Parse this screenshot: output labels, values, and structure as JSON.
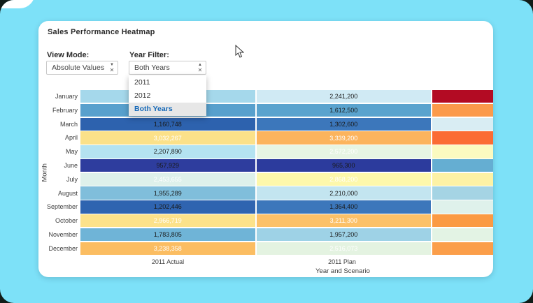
{
  "card": {
    "title": "Sales Performance Heatmap"
  },
  "controls": {
    "view_mode": {
      "label": "View Mode:",
      "value": "Absolute Values"
    },
    "year_filter": {
      "label": "Year Filter:",
      "value": "Both Years",
      "options": [
        "2011",
        "2012",
        "Both Years"
      ],
      "selected_option": "Both Years"
    }
  },
  "colors": {
    "background": "#7de1f8",
    "card": "#ffffff",
    "menu_selected_text": "#1669b8",
    "menu_selected_bg": "#e7e7e7"
  },
  "chart_data": {
    "type": "heatmap",
    "title": "Sales Performance Heatmap",
    "xlabel": "Year and Scenario",
    "ylabel": "Month",
    "x_categories": [
      "2011 Actual",
      "2011 Plan"
    ],
    "x_tick_positions": [
      185,
      434
    ],
    "y_categories": [
      "January",
      "February",
      "March",
      "April",
      "May",
      "June",
      "July",
      "August",
      "September",
      "October",
      "November",
      "December"
    ],
    "series": [
      {
        "name": "2011 Actual",
        "values": [
          null,
          null,
          1160748,
          3032267,
          2207890,
          957929,
          2453655,
          1955289,
          1202446,
          2966719,
          1783805,
          3238358
        ]
      },
      {
        "name": "2011 Plan",
        "values": [
          2241200,
          1612500,
          1302600,
          3339200,
          2572200,
          965300,
          2868200,
          2210000,
          1364400,
          3211300,
          1957200,
          2516073
        ]
      }
    ],
    "note_third_column": "partial unlabeled column clipped at card edge",
    "rows": [
      {
        "month": "January",
        "cells": [
          {
            "bg": "#a5d8eb",
            "label": "",
            "text": "#1a1a1a"
          },
          {
            "bg": "#d0eaf4",
            "label": "2,241,200",
            "text": "#1a1a1a"
          },
          {
            "bg": "#b30b23",
            "label": "",
            "text": "#1a1a1a"
          }
        ]
      },
      {
        "month": "February",
        "cells": [
          {
            "bg": "#58a0cd",
            "label": "",
            "text": "#1a1a1a"
          },
          {
            "bg": "#5aa3ce",
            "label": "1,612,500",
            "text": "#1a1a1a"
          },
          {
            "bg": "#fb9a4b",
            "label": "",
            "text": "#1a1a1a"
          }
        ]
      },
      {
        "month": "March",
        "cells": [
          {
            "bg": "#2d62ae",
            "label": "1,160,748",
            "text": "#1a1a1a"
          },
          {
            "bg": "#3c77bb",
            "label": "1,302,600",
            "text": "#1a1a1a"
          },
          {
            "bg": "#d9edf3",
            "label": "",
            "text": "#1a1a1a"
          }
        ]
      },
      {
        "month": "April",
        "cells": [
          {
            "bg": "#fbe189",
            "label": "3,032,267",
            "text": "#ffffff"
          },
          {
            "bg": "#fcb45d",
            "label": "3,339,200",
            "text": "#ffffff"
          },
          {
            "bg": "#fb6c34",
            "label": "",
            "text": "#ffffff"
          }
        ]
      },
      {
        "month": "May",
        "cells": [
          {
            "bg": "#b4e3f1",
            "label": "2,207,890",
            "text": "#1a1a1a"
          },
          {
            "bg": "#e7f5e3",
            "label": "2,572,200",
            "text": "#ffffff"
          },
          {
            "bg": "#fbfac0",
            "label": "",
            "text": "#1a1a1a"
          }
        ]
      },
      {
        "month": "June",
        "cells": [
          {
            "bg": "#2e3d9e",
            "label": "957,929",
            "text": "#1a1a1a"
          },
          {
            "bg": "#2c3b9d",
            "label": "965,300",
            "text": "#1a1a1a"
          },
          {
            "bg": "#65aed2",
            "label": "",
            "text": "#1a1a1a"
          }
        ]
      },
      {
        "month": "July",
        "cells": [
          {
            "bg": "#def1eb",
            "label": "2,453,655",
            "text": "#ffffff"
          },
          {
            "bg": "#fdf8ab",
            "label": "2,868,200",
            "text": "#ffffff"
          },
          {
            "bg": "#fdf2a5",
            "label": "",
            "text": "#ffffff"
          }
        ]
      },
      {
        "month": "August",
        "cells": [
          {
            "bg": "#80bedb",
            "label": "1,955,289",
            "text": "#1a1a1a"
          },
          {
            "bg": "#c3e5f0",
            "label": "2,210,000",
            "text": "#1a1a1a"
          },
          {
            "bg": "#a5d4e4",
            "label": "",
            "text": "#1a1a1a"
          }
        ]
      },
      {
        "month": "September",
        "cells": [
          {
            "bg": "#2f64b0",
            "label": "1,202,446",
            "text": "#1a1a1a"
          },
          {
            "bg": "#3c77bb",
            "label": "1,364,400",
            "text": "#1a1a1a"
          },
          {
            "bg": "#dff1eb",
            "label": "",
            "text": "#1a1a1a"
          }
        ]
      },
      {
        "month": "October",
        "cells": [
          {
            "bg": "#fce28a",
            "label": "2,966,719",
            "text": "#ffffff"
          },
          {
            "bg": "#fcc168",
            "label": "3,211,300",
            "text": "#ffffff"
          },
          {
            "bg": "#fb9a43",
            "label": "",
            "text": "#ffffff"
          }
        ]
      },
      {
        "month": "November",
        "cells": [
          {
            "bg": "#6fb4d7",
            "label": "1,783,805",
            "text": "#1a1a1a"
          },
          {
            "bg": "#9ed2e6",
            "label": "1,957,200",
            "text": "#1a1a1a"
          },
          {
            "bg": "#e3f3e4",
            "label": "",
            "text": "#1a1a1a"
          }
        ]
      },
      {
        "month": "December",
        "cells": [
          {
            "bg": "#fbbd62",
            "label": "3,238,358",
            "text": "#ffffff"
          },
          {
            "bg": "#e4f3e1",
            "label": "2,516,073",
            "text": "#ffffff"
          },
          {
            "bg": "#fb9e4a",
            "label": "",
            "text": "#1a1a1a"
          }
        ]
      }
    ]
  }
}
